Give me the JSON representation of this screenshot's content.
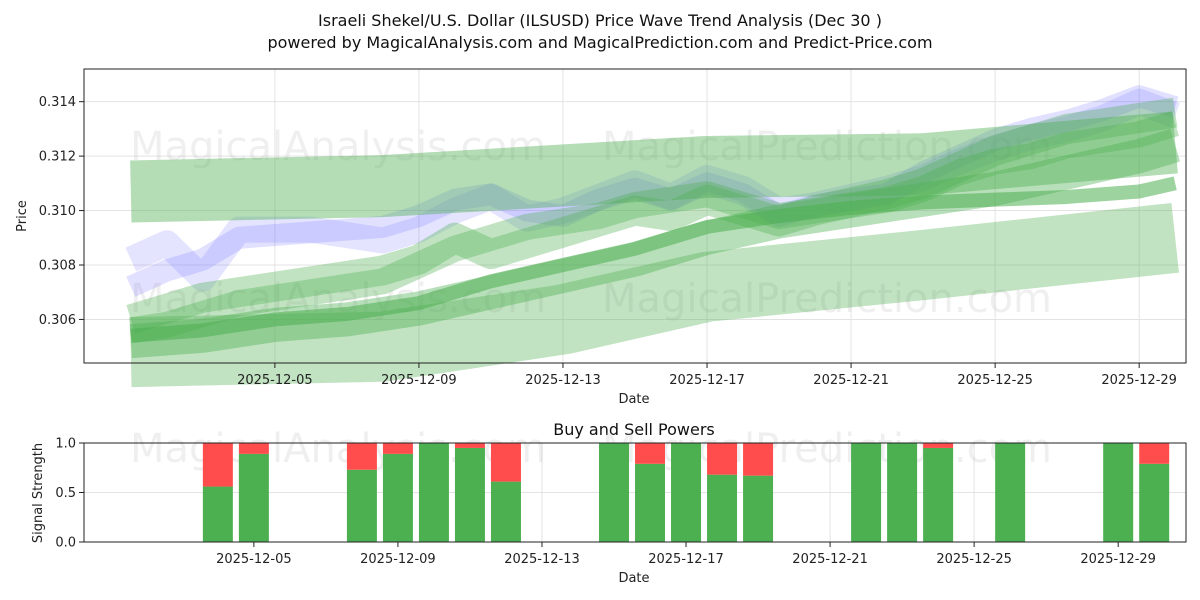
{
  "chart_data": [
    {
      "type": "line",
      "title": "Israeli Shekel/U.S. Dollar (ILSUSD) Price Wave Trend Analysis (Dec 30 )",
      "subtitle": "powered by MagicalAnalysis.com and MagicalPrediction.com and Predict-Price.com",
      "xlabel": "Date",
      "ylabel": "Price",
      "ylim": [
        0.3044,
        0.3152
      ],
      "x_range_days": [
        -1.3,
        29.3
      ],
      "grid": true,
      "x_tick_labels": [
        "2025-12-05",
        "2025-12-09",
        "2025-12-13",
        "2025-12-17",
        "2025-12-21",
        "2025-12-25",
        "2025-12-29"
      ],
      "x_tick_days": [
        4,
        8,
        12,
        16,
        20,
        24,
        28
      ],
      "y_tick_labels": [
        "0.306",
        "0.308",
        "0.310",
        "0.312",
        "0.314"
      ],
      "y_tick_values": [
        0.306,
        0.308,
        0.31,
        0.312,
        0.314
      ],
      "watermarks": [
        "MagicalAnalysis.com",
        "MagicalPrediction.com",
        "MagicalAnalysis.com",
        "MagicalPrediction.com"
      ],
      "series": [
        {
          "name": "blue-wave-1",
          "color": "#6a6aff",
          "x": [
            0,
            1,
            2,
            3,
            5,
            7,
            8,
            9,
            10,
            11,
            12,
            13,
            14,
            15,
            16,
            17,
            18,
            19,
            21,
            22,
            23,
            24,
            25,
            26,
            27,
            28,
            29
          ],
          "values": [
            0.3082,
            0.3088,
            0.3075,
            0.3093,
            0.3093,
            0.3089,
            0.3093,
            0.31,
            0.3105,
            0.3097,
            0.31,
            0.3105,
            0.311,
            0.3105,
            0.3112,
            0.3108,
            0.31,
            0.3102,
            0.3108,
            0.3112,
            0.3118,
            0.3123,
            0.3127,
            0.313,
            0.3134,
            0.314,
            0.3135
          ]
        },
        {
          "name": "blue-wave-2",
          "color": "#6a6aff",
          "x": [
            0,
            1,
            2,
            3,
            5,
            7,
            8,
            9,
            10,
            11,
            12,
            13,
            14,
            15,
            16,
            17,
            18,
            19,
            21,
            22,
            23,
            24,
            25,
            26,
            27,
            28,
            29
          ],
          "values": [
            0.3072,
            0.3078,
            0.3082,
            0.309,
            0.3092,
            0.3094,
            0.3098,
            0.3104,
            0.3106,
            0.31,
            0.3098,
            0.3104,
            0.3108,
            0.3104,
            0.311,
            0.3106,
            0.3098,
            0.3102,
            0.3106,
            0.3114,
            0.312,
            0.3126,
            0.313,
            0.3133,
            0.3137,
            0.3142,
            0.3138
          ]
        },
        {
          "name": "green-band-wide",
          "color": "#4caf50",
          "x": [
            0,
            7,
            16,
            22,
            29
          ],
          "values": [
            0.3107,
            0.3109,
            0.3116,
            0.3117,
            0.3125
          ]
        },
        {
          "name": "green-wave-1",
          "color": "#4caf50",
          "x": [
            0,
            1,
            2,
            3,
            5,
            7,
            8,
            9,
            10,
            11,
            12,
            13,
            14,
            15,
            16,
            17,
            18,
            19,
            21,
            22,
            23,
            24,
            25,
            26,
            27,
            28,
            29
          ],
          "values": [
            0.306,
            0.3064,
            0.3068,
            0.307,
            0.3074,
            0.3078,
            0.3082,
            0.309,
            0.3084,
            0.3088,
            0.3092,
            0.3096,
            0.31,
            0.3098,
            0.3104,
            0.31,
            0.3096,
            0.31,
            0.3106,
            0.311,
            0.3116,
            0.3122,
            0.3126,
            0.313,
            0.3132,
            0.3134,
            0.3136
          ]
        },
        {
          "name": "green-wave-2",
          "color": "#4caf50",
          "x": [
            0,
            1,
            2,
            3,
            5,
            7,
            8,
            9,
            10,
            11,
            12,
            13,
            14,
            15,
            16,
            17,
            18,
            19,
            21,
            22,
            23,
            24,
            25,
            26,
            27,
            28,
            29
          ],
          "values": [
            0.3056,
            0.3058,
            0.3062,
            0.3066,
            0.307,
            0.3074,
            0.308,
            0.3086,
            0.309,
            0.3094,
            0.3096,
            0.3098,
            0.3102,
            0.3104,
            0.3106,
            0.3102,
            0.3098,
            0.31,
            0.3104,
            0.3108,
            0.3114,
            0.3118,
            0.312,
            0.3124,
            0.3126,
            0.3128,
            0.3132
          ]
        },
        {
          "name": "green-trend-1",
          "color": "#4caf50",
          "x": [
            0,
            2,
            4,
            6,
            8,
            10,
            12,
            14,
            16,
            18,
            20,
            22,
            24,
            26,
            28,
            29
          ],
          "values": [
            0.3054,
            0.3056,
            0.306,
            0.3062,
            0.3066,
            0.3074,
            0.308,
            0.3086,
            0.3094,
            0.3098,
            0.3101,
            0.3103,
            0.3104,
            0.3105,
            0.3107,
            0.311
          ]
        },
        {
          "name": "green-trend-2",
          "color": "#4caf50",
          "x": [
            0,
            2,
            4,
            6,
            8,
            10,
            12,
            14,
            16,
            18,
            20,
            22,
            24,
            26,
            28,
            29
          ],
          "values": [
            0.3052,
            0.3054,
            0.3058,
            0.306,
            0.3064,
            0.307,
            0.3076,
            0.3082,
            0.309,
            0.3096,
            0.31,
            0.3104,
            0.3108,
            0.3114,
            0.312,
            0.3124
          ]
        },
        {
          "name": "green-band-lower",
          "color": "#4caf50",
          "x": [
            0,
            7,
            12,
            16,
            22,
            29
          ],
          "values": [
            0.3048,
            0.305,
            0.306,
            0.3072,
            0.308,
            0.309
          ]
        }
      ]
    },
    {
      "type": "bar",
      "title": "Buy and Sell Powers",
      "xlabel": "Date",
      "ylabel": "Signal Strength",
      "ylim": [
        0.0,
        1.0
      ],
      "grid": true,
      "x_tick_labels": [
        "2025-12-05",
        "2025-12-09",
        "2025-12-13",
        "2025-12-17",
        "2025-12-21",
        "2025-12-25",
        "2025-12-29"
      ],
      "x_tick_days": [
        4,
        8,
        12,
        16,
        20,
        24,
        28
      ],
      "y_tick_labels": [
        "0.0",
        "0.5",
        "1.0"
      ],
      "y_tick_values": [
        0.0,
        0.5,
        1.0
      ],
      "watermarks": [
        "MagicalAnalysis.com",
        "MagicalPrediction.com"
      ],
      "colors": {
        "buy": "#4caf50",
        "sell": "#ff4d4d"
      },
      "days": [
        3,
        4,
        7,
        8,
        9,
        10,
        11,
        14,
        15,
        16,
        17,
        18,
        21,
        22,
        23,
        25,
        28,
        29
      ],
      "series": [
        {
          "name": "Buy",
          "values": [
            0.56,
            0.89,
            0.73,
            0.89,
            1.0,
            0.95,
            0.61,
            1.0,
            0.79,
            1.0,
            0.68,
            0.67,
            1.0,
            1.0,
            0.95,
            1.0,
            1.0,
            0.79
          ]
        },
        {
          "name": "Sell",
          "values": [
            0.44,
            0.11,
            0.27,
            0.11,
            0.0,
            0.05,
            0.39,
            0.0,
            0.21,
            0.0,
            0.32,
            0.33,
            0.0,
            0.0,
            0.05,
            0.0,
            0.0,
            0.21
          ]
        }
      ]
    }
  ]
}
